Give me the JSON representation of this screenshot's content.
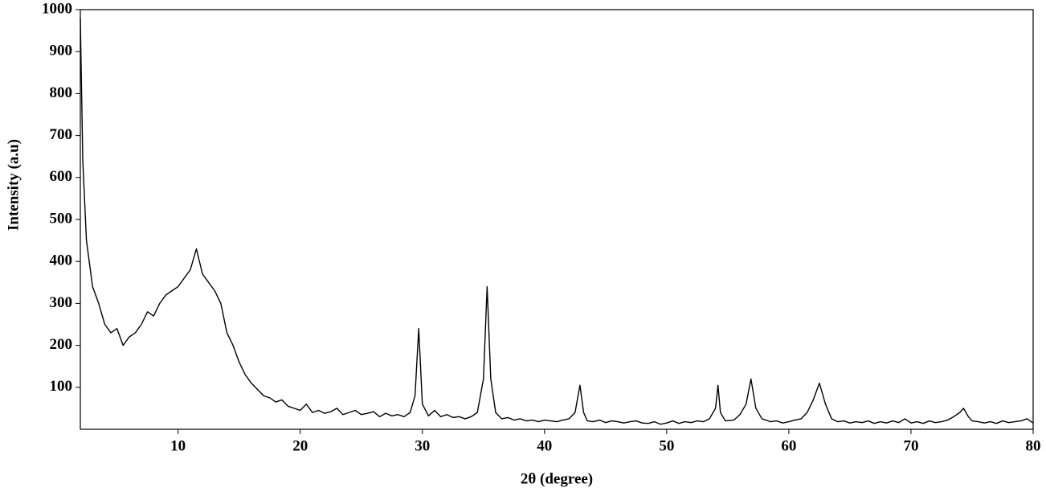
{
  "chart_data": {
    "type": "line",
    "x_label": "2θ (degree)",
    "y_label": "Intensity (a.u)",
    "color": "#000000",
    "xlim": [
      2,
      80
    ],
    "xticks": [
      10,
      20,
      30,
      40,
      50,
      60,
      70,
      80
    ],
    "ylim": [
      0,
      1000
    ],
    "yticks": [
      100,
      200,
      300,
      400,
      500,
      600,
      700,
      800,
      900,
      1000
    ],
    "x": [
      2.0,
      2.2,
      2.5,
      3.0,
      3.5,
      4.0,
      4.5,
      5.0,
      5.5,
      6.0,
      6.5,
      7.0,
      7.5,
      8.0,
      8.5,
      9.0,
      9.5,
      10.0,
      10.5,
      11.0,
      11.5,
      12.0,
      12.5,
      13.0,
      13.5,
      14.0,
      14.5,
      15.0,
      15.5,
      16.0,
      16.5,
      17.0,
      17.5,
      18.0,
      18.5,
      19.0,
      19.5,
      20.0,
      20.5,
      21.0,
      21.5,
      22.0,
      22.5,
      23.0,
      23.5,
      24.0,
      24.5,
      25.0,
      25.5,
      26.0,
      26.5,
      27.0,
      27.5,
      28.0,
      28.5,
      29.0,
      29.4,
      29.7,
      30.0,
      30.5,
      31.0,
      31.5,
      32.0,
      32.5,
      33.0,
      33.5,
      34.0,
      34.5,
      35.0,
      35.3,
      35.6,
      36.0,
      36.5,
      37.0,
      37.5,
      38.0,
      38.5,
      39.0,
      39.5,
      40.0,
      40.5,
      41.0,
      41.5,
      42.0,
      42.5,
      42.9,
      43.2,
      43.5,
      44.0,
      44.5,
      45.0,
      45.5,
      46.0,
      46.5,
      47.0,
      47.5,
      48.0,
      48.5,
      49.0,
      49.5,
      50.0,
      50.5,
      51.0,
      51.5,
      52.0,
      52.5,
      53.0,
      53.5,
      54.0,
      54.2,
      54.4,
      54.8,
      55.5,
      56.0,
      56.5,
      56.9,
      57.3,
      57.8,
      58.5,
      59.0,
      59.5,
      60.0,
      60.5,
      61.0,
      61.5,
      62.0,
      62.5,
      63.0,
      63.5,
      64.0,
      64.5,
      65.0,
      65.5,
      66.0,
      66.5,
      67.0,
      67.5,
      68.0,
      68.5,
      69.0,
      69.5,
      70.0,
      70.5,
      71.0,
      71.5,
      72.0,
      72.5,
      73.0,
      73.5,
      74.0,
      74.3,
      74.7,
      75.0,
      75.5,
      76.0,
      76.5,
      77.0,
      77.5,
      78.0,
      78.5,
      79.0,
      79.5,
      80.0
    ],
    "values": [
      980,
      640,
      450,
      340,
      300,
      250,
      230,
      240,
      200,
      220,
      230,
      250,
      280,
      270,
      300,
      320,
      330,
      340,
      360,
      380,
      430,
      370,
      350,
      330,
      300,
      230,
      200,
      160,
      130,
      110,
      95,
      80,
      75,
      65,
      70,
      55,
      50,
      45,
      60,
      40,
      45,
      38,
      42,
      50,
      35,
      40,
      45,
      35,
      38,
      42,
      30,
      38,
      32,
      35,
      30,
      40,
      80,
      240,
      60,
      32,
      45,
      30,
      35,
      28,
      30,
      25,
      30,
      40,
      120,
      340,
      120,
      40,
      25,
      28,
      22,
      25,
      20,
      22,
      18,
      22,
      20,
      18,
      22,
      25,
      40,
      105,
      40,
      20,
      18,
      22,
      16,
      20,
      18,
      15,
      18,
      20,
      15,
      14,
      18,
      12,
      15,
      20,
      14,
      18,
      16,
      20,
      18,
      25,
      50,
      105,
      40,
      20,
      22,
      35,
      60,
      120,
      50,
      25,
      18,
      20,
      15,
      18,
      22,
      25,
      40,
      70,
      110,
      60,
      25,
      18,
      20,
      15,
      18,
      16,
      20,
      14,
      18,
      15,
      20,
      16,
      25,
      15,
      18,
      14,
      20,
      16,
      18,
      22,
      30,
      40,
      50,
      30,
      20,
      18,
      15,
      18,
      14,
      20,
      16,
      18,
      20,
      25,
      15
    ]
  }
}
